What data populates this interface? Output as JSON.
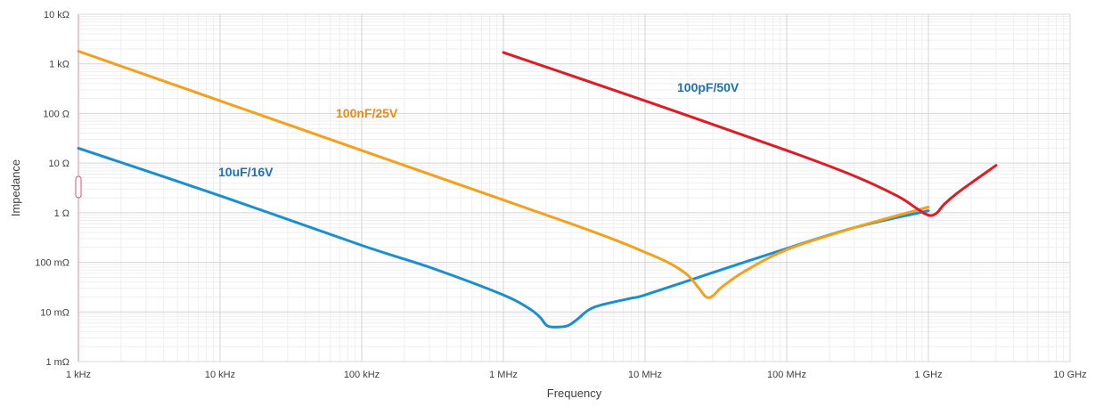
{
  "chart_data": {
    "type": "line",
    "title": "",
    "xlabel": "Frequency",
    "ylabel": "Impedance",
    "x_scale": "log",
    "y_scale": "log",
    "xlim_hz": [
      1000,
      10000000000
    ],
    "ylim_ohm": [
      0.001,
      10000
    ],
    "grid": true,
    "x_ticks": [
      {
        "value": 1000,
        "label": "1 kHz"
      },
      {
        "value": 10000,
        "label": "10 kHz"
      },
      {
        "value": 100000,
        "label": "100 kHz"
      },
      {
        "value": 1000000,
        "label": "1 MHz"
      },
      {
        "value": 10000000,
        "label": "10 MHz"
      },
      {
        "value": 100000000,
        "label": "100 MHz"
      },
      {
        "value": 1000000000,
        "label": "1 GHz"
      },
      {
        "value": 10000000000,
        "label": "10 GHz"
      }
    ],
    "y_ticks": [
      {
        "value": 0.001,
        "label": "1 mΩ"
      },
      {
        "value": 0.01,
        "label": "10 mΩ"
      },
      {
        "value": 0.1,
        "label": "100 mΩ"
      },
      {
        "value": 1,
        "label": "1 Ω"
      },
      {
        "value": 10,
        "label": "10 Ω"
      },
      {
        "value": 100,
        "label": "100 Ω"
      },
      {
        "value": 1000,
        "label": "1 kΩ"
      },
      {
        "value": 10000,
        "label": "10 kΩ"
      }
    ],
    "series": [
      {
        "name": "10uF/16V",
        "color": "#1a8fd0",
        "points": [
          [
            1000,
            20
          ],
          [
            10000,
            2.2
          ],
          [
            100000,
            0.22
          ],
          [
            300000,
            0.08
          ],
          [
            1000000,
            0.022
          ],
          [
            1500000,
            0.012
          ],
          [
            1800000,
            0.008
          ],
          [
            2000000,
            0.0055
          ],
          [
            2200000,
            0.005
          ],
          [
            2800000,
            0.0052
          ],
          [
            3300000,
            0.007
          ],
          [
            4000000,
            0.011
          ],
          [
            5000000,
            0.014
          ],
          [
            8000000,
            0.019
          ],
          [
            10000000,
            0.022
          ],
          [
            30000000,
            0.062
          ],
          [
            100000000,
            0.19
          ],
          [
            300000000,
            0.5
          ],
          [
            1000000000,
            1.1
          ]
        ]
      },
      {
        "name": "100nF/25V",
        "color": "#f5a01d",
        "points": [
          [
            1000,
            1800
          ],
          [
            10000,
            180
          ],
          [
            100000,
            18
          ],
          [
            1000000,
            1.8
          ],
          [
            3000000,
            0.6
          ],
          [
            6000000,
            0.29
          ],
          [
            10000000,
            0.16
          ],
          [
            15000000,
            0.095
          ],
          [
            20000000,
            0.055
          ],
          [
            24000000,
            0.03
          ],
          [
            27000000,
            0.02
          ],
          [
            30000000,
            0.021
          ],
          [
            35000000,
            0.032
          ],
          [
            50000000,
            0.065
          ],
          [
            100000000,
            0.18
          ],
          [
            300000000,
            0.5
          ],
          [
            1000000000,
            1.3
          ]
        ]
      },
      {
        "name": "100pF/50V",
        "color": "#e01b24",
        "points": [
          [
            1000000,
            1700
          ],
          [
            10000000,
            180
          ],
          [
            100000000,
            18
          ],
          [
            300000000,
            5.5
          ],
          [
            600000000,
            2.2
          ],
          [
            800000000,
            1.3
          ],
          [
            950000000,
            0.95
          ],
          [
            1050000000,
            0.88
          ],
          [
            1150000000,
            1.0
          ],
          [
            1300000000,
            1.5
          ],
          [
            1600000000,
            2.5
          ],
          [
            2200000000,
            4.8
          ],
          [
            3000000000,
            9
          ]
        ]
      }
    ]
  }
}
